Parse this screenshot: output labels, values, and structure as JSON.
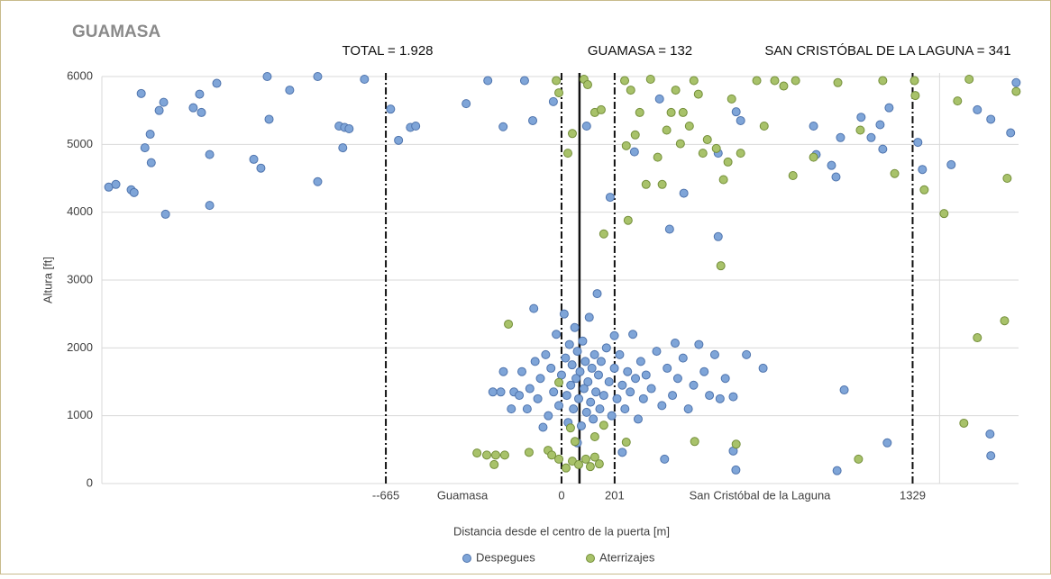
{
  "chart_data": {
    "type": "scatter",
    "title": "GUAMASA",
    "annotations": [
      "TOTAL = 1.928",
      "GUAMASA = 132",
      "SAN CRISTÓBAL DE LA LAGUNA = 341"
    ],
    "region_labels": [
      "Guamasa",
      "San Cristóbal de la Laguna"
    ],
    "xlabel": "Distancia desde el centro de la puerta [m]",
    "ylabel": "Altura [ft]",
    "xlim": [
      -1740,
      1730
    ],
    "ylim": [
      0,
      6000
    ],
    "yticks": [
      0,
      1000,
      2000,
      3000,
      4000,
      5000,
      6000
    ],
    "xticks": [
      {
        "value": -665,
        "label": "--665"
      },
      0,
      201,
      1329
    ],
    "grid": true,
    "vlines": [
      {
        "value": -665,
        "style": "dash-dot"
      },
      {
        "value": 0,
        "style": "dash-dot"
      },
      {
        "value": 68,
        "style": "solid"
      },
      {
        "value": 201,
        "style": "dash-dot"
      },
      {
        "value": 1329,
        "style": "dash-dot"
      },
      {
        "value": 1431,
        "style": "grid"
      }
    ],
    "legend": "bottom",
    "series": [
      {
        "name": "Despegues",
        "color": "#7fa5d8",
        "edgecolor": "#4f74ad",
        "points": [
          [
            -1714,
            4370
          ],
          [
            -1687,
            4410
          ],
          [
            -1629,
            4330
          ],
          [
            -1618,
            4290
          ],
          [
            -1591,
            5750
          ],
          [
            -1577,
            4950
          ],
          [
            -1557,
            5150
          ],
          [
            -1553,
            4730
          ],
          [
            -1523,
            5500
          ],
          [
            -1506,
            5620
          ],
          [
            -1499,
            3970
          ],
          [
            -1394,
            5540
          ],
          [
            -1370,
            5740
          ],
          [
            -1363,
            5470
          ],
          [
            -1332,
            4850
          ],
          [
            -1332,
            4100
          ],
          [
            -1305,
            5900
          ],
          [
            -1165,
            4780
          ],
          [
            -1138,
            4650
          ],
          [
            -1114,
            6000
          ],
          [
            -1107,
            5370
          ],
          [
            -1029,
            5800
          ],
          [
            -923,
            4450
          ],
          [
            -923,
            6000
          ],
          [
            -842,
            5270
          ],
          [
            -821,
            5250
          ],
          [
            -804,
            5230
          ],
          [
            -828,
            4950
          ],
          [
            -746,
            5960
          ],
          [
            -647,
            5520
          ],
          [
            -617,
            5060
          ],
          [
            -572,
            5250
          ],
          [
            -552,
            5270
          ],
          [
            -361,
            5600
          ],
          [
            -279,
            5940
          ],
          [
            -221,
            5260
          ],
          [
            -140,
            5940
          ],
          [
            -109,
            5350
          ],
          [
            -31,
            5630
          ],
          [
            95,
            5270
          ],
          [
            184,
            4220
          ],
          [
            276,
            4890
          ],
          [
            371,
            5670
          ],
          [
            409,
            3750
          ],
          [
            463,
            4280
          ],
          [
            593,
            3640
          ],
          [
            593,
            4870
          ],
          [
            661,
            5480
          ],
          [
            678,
            5350
          ],
          [
            954,
            5270
          ],
          [
            964,
            4850
          ],
          [
            1022,
            4690
          ],
          [
            1039,
            4520
          ],
          [
            1056,
            5100
          ],
          [
            1134,
            5400
          ],
          [
            1172,
            5100
          ],
          [
            1206,
            5290
          ],
          [
            1216,
            4930
          ],
          [
            1240,
            5540
          ],
          [
            1349,
            5030
          ],
          [
            1366,
            4630
          ],
          [
            1475,
            4700
          ],
          [
            1574,
            5510
          ],
          [
            1625,
            5370
          ],
          [
            1700,
            5170
          ],
          [
            1721,
            5910
          ],
          [
            1622,
            730
          ],
          [
            1625,
            410
          ],
          [
            1233,
            600
          ],
          [
            1070,
            1380
          ],
          [
            1043,
            190
          ],
          [
            763,
            1700
          ],
          [
            -180,
            1350
          ],
          [
            -150,
            1650
          ],
          [
            -130,
            1100
          ],
          [
            -120,
            1400
          ],
          [
            -100,
            1800
          ],
          [
            -90,
            1250
          ],
          [
            -80,
            1550
          ],
          [
            -60,
            1900
          ],
          [
            -50,
            1000
          ],
          [
            -40,
            1700
          ],
          [
            -30,
            1350
          ],
          [
            -20,
            2200
          ],
          [
            -10,
            1150
          ],
          [
            0,
            1600
          ],
          [
            10,
            2500
          ],
          [
            15,
            1850
          ],
          [
            20,
            1300
          ],
          [
            25,
            900
          ],
          [
            30,
            2050
          ],
          [
            35,
            1450
          ],
          [
            40,
            1750
          ],
          [
            45,
            1100
          ],
          [
            50,
            2300
          ],
          [
            55,
            1550
          ],
          [
            60,
            1950
          ],
          [
            65,
            1250
          ],
          [
            70,
            1650
          ],
          [
            75,
            850
          ],
          [
            80,
            2100
          ],
          [
            85,
            1400
          ],
          [
            90,
            1800
          ],
          [
            95,
            1050
          ],
          [
            100,
            1500
          ],
          [
            105,
            2450
          ],
          [
            110,
            1200
          ],
          [
            115,
            1700
          ],
          [
            120,
            950
          ],
          [
            125,
            1900
          ],
          [
            130,
            1350
          ],
          [
            135,
            2800
          ],
          [
            140,
            1600
          ],
          [
            145,
            1100
          ],
          [
            150,
            1800
          ],
          [
            160,
            1300
          ],
          [
            170,
            2000
          ],
          [
            180,
            1500
          ],
          [
            190,
            1000
          ],
          [
            200,
            1700
          ],
          [
            210,
            1250
          ],
          [
            220,
            1900
          ],
          [
            230,
            1450
          ],
          [
            240,
            1100
          ],
          [
            250,
            1650
          ],
          [
            260,
            1350
          ],
          [
            270,
            2200
          ],
          [
            280,
            1550
          ],
          [
            290,
            950
          ],
          [
            300,
            1800
          ],
          [
            310,
            1250
          ],
          [
            320,
            1600
          ],
          [
            340,
            1400
          ],
          [
            360,
            1950
          ],
          [
            380,
            1150
          ],
          [
            400,
            1700
          ],
          [
            420,
            1300
          ],
          [
            440,
            1550
          ],
          [
            460,
            1850
          ],
          [
            480,
            1100
          ],
          [
            500,
            1450
          ],
          [
            520,
            2050
          ],
          [
            540,
            1650
          ],
          [
            560,
            1300
          ],
          [
            580,
            1900
          ],
          [
            600,
            1250
          ],
          [
            620,
            1550
          ],
          [
            650,
            1280
          ],
          [
            -260,
            1350
          ],
          [
            -230,
            1350
          ],
          [
            -220,
            1650
          ],
          [
            -190,
            1100
          ],
          [
            -160,
            1300
          ],
          [
            60,
            600
          ],
          [
            -70,
            830
          ],
          [
            230,
            460
          ],
          [
            390,
            360
          ],
          [
            660,
            200
          ],
          [
            650,
            480
          ],
          [
            -105,
            2580
          ],
          [
            200,
            2180
          ],
          [
            430,
            2070
          ],
          [
            700,
            1900
          ]
        ]
      },
      {
        "name": "Aterrizajes",
        "color": "#a8c26a",
        "edgecolor": "#748f3a",
        "points": [
          [
            -20,
            5940
          ],
          [
            -10,
            5760
          ],
          [
            24,
            4870
          ],
          [
            41,
            5160
          ],
          [
            85,
            5960
          ],
          [
            99,
            5880
          ],
          [
            126,
            5470
          ],
          [
            150,
            5510
          ],
          [
            160,
            3680
          ],
          [
            239,
            5940
          ],
          [
            245,
            4980
          ],
          [
            252,
            3880
          ],
          [
            262,
            5800
          ],
          [
            279,
            5140
          ],
          [
            296,
            5470
          ],
          [
            320,
            4410
          ],
          [
            337,
            5960
          ],
          [
            364,
            4810
          ],
          [
            381,
            4410
          ],
          [
            398,
            5210
          ],
          [
            415,
            5470
          ],
          [
            432,
            5800
          ],
          [
            450,
            5010
          ],
          [
            460,
            5470
          ],
          [
            484,
            5270
          ],
          [
            501,
            5940
          ],
          [
            518,
            5740
          ],
          [
            535,
            4870
          ],
          [
            552,
            5070
          ],
          [
            586,
            4940
          ],
          [
            603,
            3210
          ],
          [
            613,
            4480
          ],
          [
            630,
            4740
          ],
          [
            644,
            5670
          ],
          [
            678,
            4870
          ],
          [
            739,
            5940
          ],
          [
            767,
            5270
          ],
          [
            807,
            5940
          ],
          [
            841,
            5860
          ],
          [
            886,
            5940
          ],
          [
            876,
            4540
          ],
          [
            954,
            4810
          ],
          [
            1046,
            5910
          ],
          [
            1131,
            5210
          ],
          [
            1216,
            5940
          ],
          [
            1261,
            4570
          ],
          [
            1336,
            5940
          ],
          [
            1339,
            5720
          ],
          [
            1373,
            4330
          ],
          [
            1448,
            3980
          ],
          [
            1499,
            5640
          ],
          [
            1543,
            5960
          ],
          [
            1687,
            4500
          ],
          [
            1721,
            5780
          ],
          [
            1677,
            2400
          ],
          [
            1574,
            2150
          ],
          [
            1523,
            890
          ],
          [
            1124,
            360
          ],
          [
            661,
            580
          ],
          [
            504,
            620
          ],
          [
            245,
            610
          ],
          [
            -201,
            2350
          ],
          [
            -320,
            450
          ],
          [
            -283,
            420
          ],
          [
            -249,
            420
          ],
          [
            -215,
            420
          ],
          [
            -255,
            280
          ],
          [
            -123,
            460
          ],
          [
            -51,
            490
          ],
          [
            -37,
            420
          ],
          [
            -10,
            360
          ],
          [
            17,
            230
          ],
          [
            41,
            330
          ],
          [
            65,
            280
          ],
          [
            92,
            360
          ],
          [
            109,
            250
          ],
          [
            126,
            390
          ],
          [
            143,
            290
          ],
          [
            51,
            620
          ],
          [
            34,
            820
          ],
          [
            126,
            690
          ],
          [
            -10,
            1490
          ],
          [
            160,
            860
          ]
        ]
      }
    ]
  }
}
